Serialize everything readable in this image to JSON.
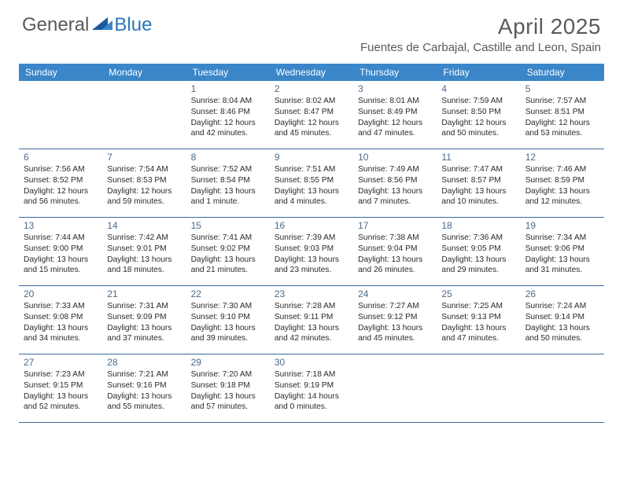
{
  "logo": {
    "general": "General",
    "blue": "Blue"
  },
  "title": "April 2025",
  "location": "Fuentes de Carbajal, Castille and Leon, Spain",
  "colors": {
    "header_bg": "#3a86c8",
    "header_text": "#ffffff",
    "row_border": "#3a6a9a",
    "day_number": "#4a6a8a",
    "body_text": "#2a2a2a",
    "title_text": "#5a5a5a",
    "logo_blue": "#2a77bb"
  },
  "weekdays": [
    "Sunday",
    "Monday",
    "Tuesday",
    "Wednesday",
    "Thursday",
    "Friday",
    "Saturday"
  ],
  "weeks": [
    [
      {
        "n": "",
        "rise": "",
        "set": "",
        "day": ""
      },
      {
        "n": "",
        "rise": "",
        "set": "",
        "day": ""
      },
      {
        "n": "1",
        "rise": "Sunrise: 8:04 AM",
        "set": "Sunset: 8:46 PM",
        "day": "Daylight: 12 hours and 42 minutes."
      },
      {
        "n": "2",
        "rise": "Sunrise: 8:02 AM",
        "set": "Sunset: 8:47 PM",
        "day": "Daylight: 12 hours and 45 minutes."
      },
      {
        "n": "3",
        "rise": "Sunrise: 8:01 AM",
        "set": "Sunset: 8:49 PM",
        "day": "Daylight: 12 hours and 47 minutes."
      },
      {
        "n": "4",
        "rise": "Sunrise: 7:59 AM",
        "set": "Sunset: 8:50 PM",
        "day": "Daylight: 12 hours and 50 minutes."
      },
      {
        "n": "5",
        "rise": "Sunrise: 7:57 AM",
        "set": "Sunset: 8:51 PM",
        "day": "Daylight: 12 hours and 53 minutes."
      }
    ],
    [
      {
        "n": "6",
        "rise": "Sunrise: 7:56 AM",
        "set": "Sunset: 8:52 PM",
        "day": "Daylight: 12 hours and 56 minutes."
      },
      {
        "n": "7",
        "rise": "Sunrise: 7:54 AM",
        "set": "Sunset: 8:53 PM",
        "day": "Daylight: 12 hours and 59 minutes."
      },
      {
        "n": "8",
        "rise": "Sunrise: 7:52 AM",
        "set": "Sunset: 8:54 PM",
        "day": "Daylight: 13 hours and 1 minute."
      },
      {
        "n": "9",
        "rise": "Sunrise: 7:51 AM",
        "set": "Sunset: 8:55 PM",
        "day": "Daylight: 13 hours and 4 minutes."
      },
      {
        "n": "10",
        "rise": "Sunrise: 7:49 AM",
        "set": "Sunset: 8:56 PM",
        "day": "Daylight: 13 hours and 7 minutes."
      },
      {
        "n": "11",
        "rise": "Sunrise: 7:47 AM",
        "set": "Sunset: 8:57 PM",
        "day": "Daylight: 13 hours and 10 minutes."
      },
      {
        "n": "12",
        "rise": "Sunrise: 7:46 AM",
        "set": "Sunset: 8:59 PM",
        "day": "Daylight: 13 hours and 12 minutes."
      }
    ],
    [
      {
        "n": "13",
        "rise": "Sunrise: 7:44 AM",
        "set": "Sunset: 9:00 PM",
        "day": "Daylight: 13 hours and 15 minutes."
      },
      {
        "n": "14",
        "rise": "Sunrise: 7:42 AM",
        "set": "Sunset: 9:01 PM",
        "day": "Daylight: 13 hours and 18 minutes."
      },
      {
        "n": "15",
        "rise": "Sunrise: 7:41 AM",
        "set": "Sunset: 9:02 PM",
        "day": "Daylight: 13 hours and 21 minutes."
      },
      {
        "n": "16",
        "rise": "Sunrise: 7:39 AM",
        "set": "Sunset: 9:03 PM",
        "day": "Daylight: 13 hours and 23 minutes."
      },
      {
        "n": "17",
        "rise": "Sunrise: 7:38 AM",
        "set": "Sunset: 9:04 PM",
        "day": "Daylight: 13 hours and 26 minutes."
      },
      {
        "n": "18",
        "rise": "Sunrise: 7:36 AM",
        "set": "Sunset: 9:05 PM",
        "day": "Daylight: 13 hours and 29 minutes."
      },
      {
        "n": "19",
        "rise": "Sunrise: 7:34 AM",
        "set": "Sunset: 9:06 PM",
        "day": "Daylight: 13 hours and 31 minutes."
      }
    ],
    [
      {
        "n": "20",
        "rise": "Sunrise: 7:33 AM",
        "set": "Sunset: 9:08 PM",
        "day": "Daylight: 13 hours and 34 minutes."
      },
      {
        "n": "21",
        "rise": "Sunrise: 7:31 AM",
        "set": "Sunset: 9:09 PM",
        "day": "Daylight: 13 hours and 37 minutes."
      },
      {
        "n": "22",
        "rise": "Sunrise: 7:30 AM",
        "set": "Sunset: 9:10 PM",
        "day": "Daylight: 13 hours and 39 minutes."
      },
      {
        "n": "23",
        "rise": "Sunrise: 7:28 AM",
        "set": "Sunset: 9:11 PM",
        "day": "Daylight: 13 hours and 42 minutes."
      },
      {
        "n": "24",
        "rise": "Sunrise: 7:27 AM",
        "set": "Sunset: 9:12 PM",
        "day": "Daylight: 13 hours and 45 minutes."
      },
      {
        "n": "25",
        "rise": "Sunrise: 7:25 AM",
        "set": "Sunset: 9:13 PM",
        "day": "Daylight: 13 hours and 47 minutes."
      },
      {
        "n": "26",
        "rise": "Sunrise: 7:24 AM",
        "set": "Sunset: 9:14 PM",
        "day": "Daylight: 13 hours and 50 minutes."
      }
    ],
    [
      {
        "n": "27",
        "rise": "Sunrise: 7:23 AM",
        "set": "Sunset: 9:15 PM",
        "day": "Daylight: 13 hours and 52 minutes."
      },
      {
        "n": "28",
        "rise": "Sunrise: 7:21 AM",
        "set": "Sunset: 9:16 PM",
        "day": "Daylight: 13 hours and 55 minutes."
      },
      {
        "n": "29",
        "rise": "Sunrise: 7:20 AM",
        "set": "Sunset: 9:18 PM",
        "day": "Daylight: 13 hours and 57 minutes."
      },
      {
        "n": "30",
        "rise": "Sunrise: 7:18 AM",
        "set": "Sunset: 9:19 PM",
        "day": "Daylight: 14 hours and 0 minutes."
      },
      {
        "n": "",
        "rise": "",
        "set": "",
        "day": ""
      },
      {
        "n": "",
        "rise": "",
        "set": "",
        "day": ""
      },
      {
        "n": "",
        "rise": "",
        "set": "",
        "day": ""
      }
    ]
  ]
}
